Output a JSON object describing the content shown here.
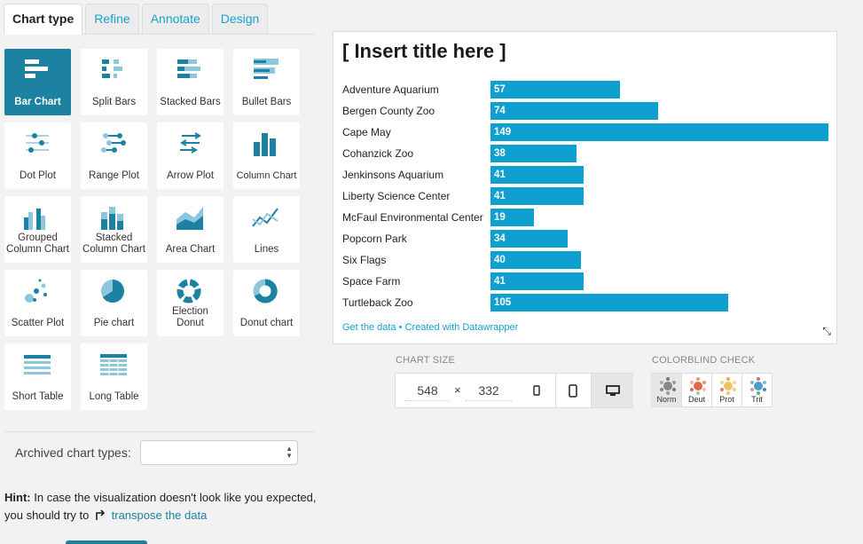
{
  "tabs": [
    {
      "label": "Chart type",
      "active": true
    },
    {
      "label": "Refine"
    },
    {
      "label": "Annotate"
    },
    {
      "label": "Design"
    }
  ],
  "chart_types": [
    {
      "label": "Bar Chart",
      "icon": "bar-chart-icon",
      "active": true
    },
    {
      "label": "Split Bars",
      "icon": "split-bars-icon"
    },
    {
      "label": "Stacked Bars",
      "icon": "stacked-bars-icon"
    },
    {
      "label": "Bullet Bars",
      "icon": "bullet-bars-icon"
    },
    {
      "label": "Dot Plot",
      "icon": "dot-plot-icon"
    },
    {
      "label": "Range Plot",
      "icon": "range-plot-icon"
    },
    {
      "label": "Arrow Plot",
      "icon": "arrow-plot-icon"
    },
    {
      "label": "Column Chart",
      "icon": "column-chart-icon"
    },
    {
      "label": "Grouped Column Chart",
      "icon": "grouped-column-icon"
    },
    {
      "label": "Stacked Column Chart",
      "icon": "stacked-column-icon"
    },
    {
      "label": "Area Chart",
      "icon": "area-chart-icon"
    },
    {
      "label": "Lines",
      "icon": "lines-icon"
    },
    {
      "label": "Scatter Plot",
      "icon": "scatter-plot-icon"
    },
    {
      "label": "Pie chart",
      "icon": "pie-chart-icon"
    },
    {
      "label": "Election Donut",
      "icon": "election-donut-icon"
    },
    {
      "label": "Donut chart",
      "icon": "donut-chart-icon"
    },
    {
      "label": "Short Table",
      "icon": "short-table-icon"
    },
    {
      "label": "Long Table",
      "icon": "long-table-icon"
    }
  ],
  "archived": {
    "label": "Archived chart types:",
    "value": ""
  },
  "hint": {
    "bold": "Hint:",
    "text": "In case the visualization doesn't look like you expected, you should try to",
    "link": "transpose the data"
  },
  "chart_data": {
    "type": "bar",
    "title": "[ Insert title here ]",
    "categories": [
      "Adventure Aquarium",
      "Bergen County Zoo",
      "Cape May",
      "Cohanzick Zoo",
      "Jenkinsons Aquarium",
      "Liberty Science Center",
      "McFaul Environmental Center",
      "Popcorn Park",
      "Six Flags",
      "Space Farm",
      "Turtleback Zoo"
    ],
    "values": [
      57,
      74,
      149,
      38,
      41,
      41,
      19,
      34,
      40,
      41,
      105
    ],
    "xlim": [
      0,
      149
    ],
    "color": "#0fa0cf",
    "footer": {
      "get_data": "Get the data",
      "separator": " • ",
      "created_with": "Created with Datawrapper"
    }
  },
  "chart_size": {
    "label": "CHART SIZE",
    "width": "548",
    "height": "332",
    "times": "×"
  },
  "colorblind": {
    "label": "COLORBLIND CHECK",
    "modes": [
      {
        "label": "Norm",
        "active": true
      },
      {
        "label": "Deut"
      },
      {
        "label": "Prot"
      },
      {
        "label": "Trit"
      }
    ]
  },
  "colors": {
    "accent": "#1d81a2",
    "bar": "#0fa0cf",
    "link": "#18a1cd"
  }
}
